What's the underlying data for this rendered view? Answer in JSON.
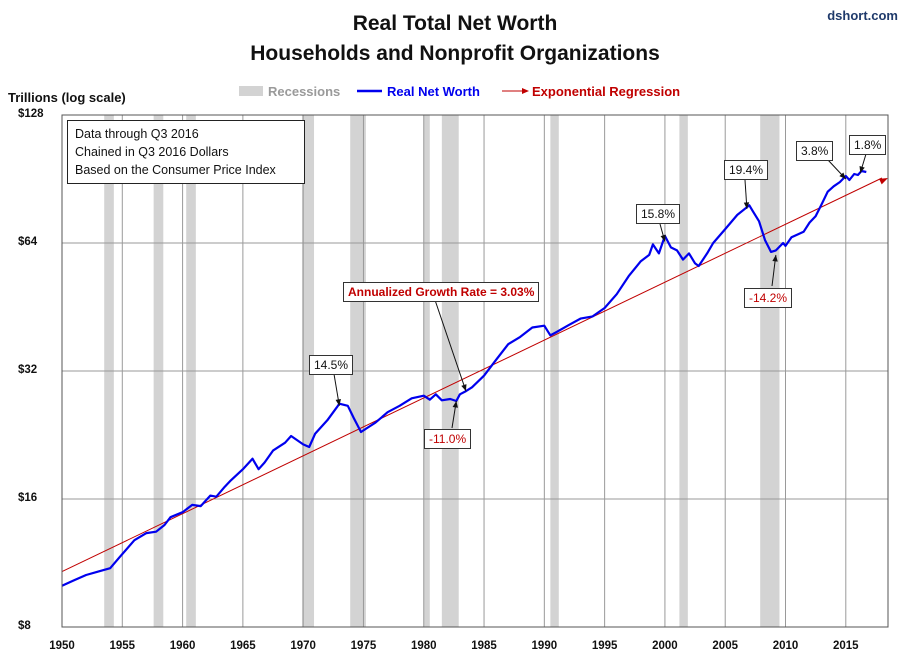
{
  "brand": "dshort.com",
  "chart_data": {
    "type": "line",
    "title": "Real Total Net Worth",
    "subtitle": "Households and Nonprofit Organizations",
    "ylabel": "Trillions (log scale)",
    "yscale": "log",
    "ylim": [
      8,
      128
    ],
    "xlim": [
      1950,
      2018.5
    ],
    "grid": true,
    "legend_placement": "top-center",
    "y_ticks": [
      {
        "value": 8,
        "label": "$8"
      },
      {
        "value": 16,
        "label": "$16"
      },
      {
        "value": 32,
        "label": "$32"
      },
      {
        "value": 64,
        "label": "$64"
      },
      {
        "value": 128,
        "label": "$128"
      }
    ],
    "x_ticks": [
      1950,
      1955,
      1960,
      1965,
      1970,
      1975,
      1980,
      1985,
      1990,
      1995,
      2000,
      2005,
      2010,
      2015
    ],
    "legend": {
      "recessions": "Recessions",
      "series": "Real Net Worth",
      "regression": "Exponential Regression"
    },
    "colors": {
      "series": "#0000ee",
      "regression": "#c00000",
      "recession": "#d3d3d3",
      "grid": "#9a9a9a"
    },
    "recessions": [
      [
        1953.5,
        1954.3
      ],
      [
        1957.6,
        1958.4
      ],
      [
        1960.3,
        1961.1
      ],
      [
        1969.9,
        1970.9
      ],
      [
        1973.9,
        1975.2
      ],
      [
        1980.0,
        1980.5
      ],
      [
        1981.5,
        1982.9
      ],
      [
        1990.5,
        1991.2
      ],
      [
        2001.2,
        2001.9
      ],
      [
        2007.9,
        2009.5
      ]
    ],
    "series": [
      {
        "name": "Real Net Worth",
        "x": [
          1950.0,
          1951.0,
          1952.0,
          1953.0,
          1954.0,
          1954.8,
          1956.0,
          1957.0,
          1957.8,
          1958.5,
          1959.0,
          1960.0,
          1960.8,
          1961.5,
          1962.3,
          1962.8,
          1963.5,
          1964.0,
          1965.0,
          1965.8,
          1966.3,
          1966.8,
          1967.5,
          1968.5,
          1969.0,
          1970.0,
          1970.5,
          1971.0,
          1972.0,
          1972.8,
          1973.0,
          1973.7,
          1974.2,
          1974.8,
          1975.3,
          1976.0,
          1977.0,
          1978.0,
          1979.0,
          1980.0,
          1980.5,
          1981.0,
          1981.5,
          1982.2,
          1982.7,
          1983.0,
          1983.5,
          1984.0,
          1985.0,
          1986.0,
          1987.0,
          1988.0,
          1989.0,
          1990.0,
          1990.5,
          1991.0,
          1992.0,
          1993.0,
          1994.0,
          1995.0,
          1996.0,
          1997.0,
          1998.0,
          1998.7,
          1999.0,
          1999.5,
          2000.0,
          2000.5,
          2001.0,
          2001.5,
          2002.0,
          2002.5,
          2002.8,
          2003.5,
          2004.0,
          2005.0,
          2006.0,
          2007.0,
          2007.3,
          2007.8,
          2008.3,
          2008.8,
          2009.2,
          2009.8,
          2010.0,
          2010.5,
          2011.0,
          2011.5,
          2012.0,
          2012.5,
          2013.0,
          2013.5,
          2014.0,
          2014.5,
          2015.0,
          2015.3,
          2015.7,
          2016.0,
          2016.3,
          2016.7
        ],
        "values": [
          10.0,
          10.3,
          10.6,
          10.8,
          11.0,
          11.7,
          12.8,
          13.3,
          13.4,
          13.9,
          14.5,
          14.9,
          15.5,
          15.4,
          16.3,
          16.2,
          17.1,
          17.7,
          18.8,
          19.9,
          18.8,
          19.5,
          20.8,
          21.7,
          22.5,
          21.5,
          21.2,
          22.8,
          24.5,
          26.3,
          26.8,
          26.5,
          24.8,
          23.0,
          23.5,
          24.2,
          25.6,
          26.5,
          27.6,
          28.0,
          27.4,
          28.2,
          27.3,
          27.5,
          27.2,
          28.2,
          28.7,
          29.3,
          31.2,
          34.0,
          37.0,
          38.5,
          40.5,
          40.9,
          38.8,
          39.5,
          41.0,
          42.5,
          43.0,
          45.0,
          48.5,
          53.5,
          58.0,
          60.0,
          63.5,
          60.5,
          66.5,
          62.5,
          61.5,
          58.5,
          60.5,
          57.3,
          56.5,
          60.5,
          64.0,
          69.0,
          74.5,
          78.5,
          76.0,
          72.0,
          65.0,
          61.0,
          61.5,
          64.0,
          63.0,
          66.0,
          67.0,
          68.0,
          71.5,
          74.0,
          79.0,
          84.5,
          87.0,
          89.0,
          92.0,
          90.0,
          93.0,
          92.5,
          94.5,
          94.0
        ]
      }
    ],
    "regression": {
      "name": "Exponential Regression",
      "x": [
        1950.0,
        2018.5
      ],
      "values": [
        10.8,
        91.0
      ]
    },
    "info_box": [
      "Data through Q3 2016",
      "Chained in Q3 2016  Dollars",
      "Based on the Consumer Price Index"
    ],
    "annotations": {
      "growth": "Annualized Growth Rate = 3.03%",
      "a1973": "14.5%",
      "a1982": "-11.0%",
      "a2000": "15.8%",
      "a2007": "19.4%",
      "a2009": "-14.2%",
      "a2015a": "3.8%",
      "a2015b": "1.8%"
    }
  }
}
